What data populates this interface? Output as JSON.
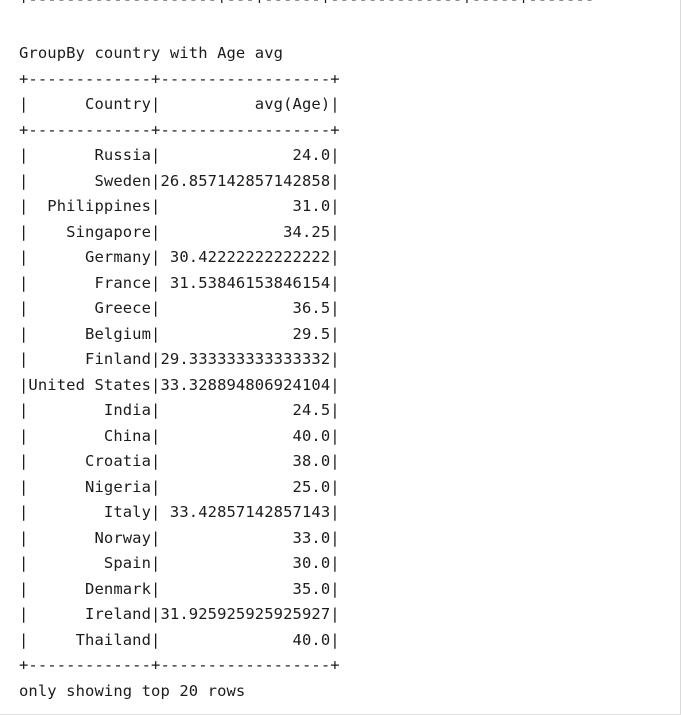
{
  "output": {
    "previous_table_border": "+--------------------+---+------+--------------+-----+-------",
    "heading": "GroupBy country with Age avg",
    "border": "+-------------+------------------+",
    "header_row": "|      Country|          avg(Age)|",
    "rows": [
      "|       Russia|              24.0|",
      "|       Sweden|26.857142857142858|",
      "|  Philippines|              31.0|",
      "|    Singapore|             34.25|",
      "|      Germany| 30.42222222222222|",
      "|       France| 31.53846153846154|",
      "|       Greece|              36.5|",
      "|      Belgium|              29.5|",
      "|      Finland|29.333333333333332|",
      "|United States|33.328894806924104|",
      "|        India|              24.5|",
      "|        China|              40.0|",
      "|      Croatia|              38.0|",
      "|      Nigeria|              25.0|",
      "|        Italy| 33.42857142857143|",
      "|       Norway|              33.0|",
      "|        Spain|              30.0|",
      "|      Denmark|              35.0|",
      "|      Ireland|31.925925925925927|",
      "|     Thailand|              40.0|"
    ],
    "footer": "only showing top 20 rows"
  }
}
